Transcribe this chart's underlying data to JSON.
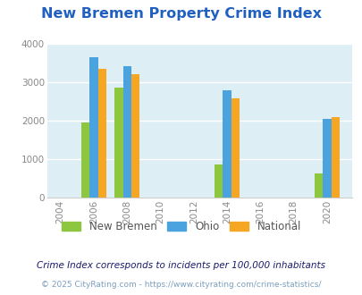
{
  "title": "New Bremen Property Crime Index",
  "title_color": "#2060c0",
  "years": [
    2006,
    2008,
    2014,
    2020
  ],
  "new_bremen": [
    1950,
    2860,
    860,
    640
  ],
  "ohio": [
    3660,
    3420,
    2810,
    2060
  ],
  "national": [
    3350,
    3210,
    2600,
    2100
  ],
  "nb_color": "#8dc63f",
  "ohio_color": "#4aa3df",
  "nat_color": "#f5a623",
  "bg_color": "#ddeef5",
  "ylim": [
    0,
    4000
  ],
  "yticks": [
    0,
    1000,
    2000,
    3000,
    4000
  ],
  "xtick_years": [
    2004,
    2006,
    2008,
    2010,
    2012,
    2014,
    2016,
    2018,
    2020
  ],
  "bar_width": 0.5,
  "legend_labels": [
    "New Bremen",
    "Ohio",
    "National"
  ],
  "footnote": "Crime Index corresponds to incidents per 100,000 inhabitants",
  "footnote_color": "#1a1a6e",
  "copyright": "© 2025 CityRating.com - https://www.cityrating.com/crime-statistics/",
  "copyright_color": "#7a9fbf",
  "figsize": [
    4.06,
    3.3
  ],
  "dpi": 100
}
